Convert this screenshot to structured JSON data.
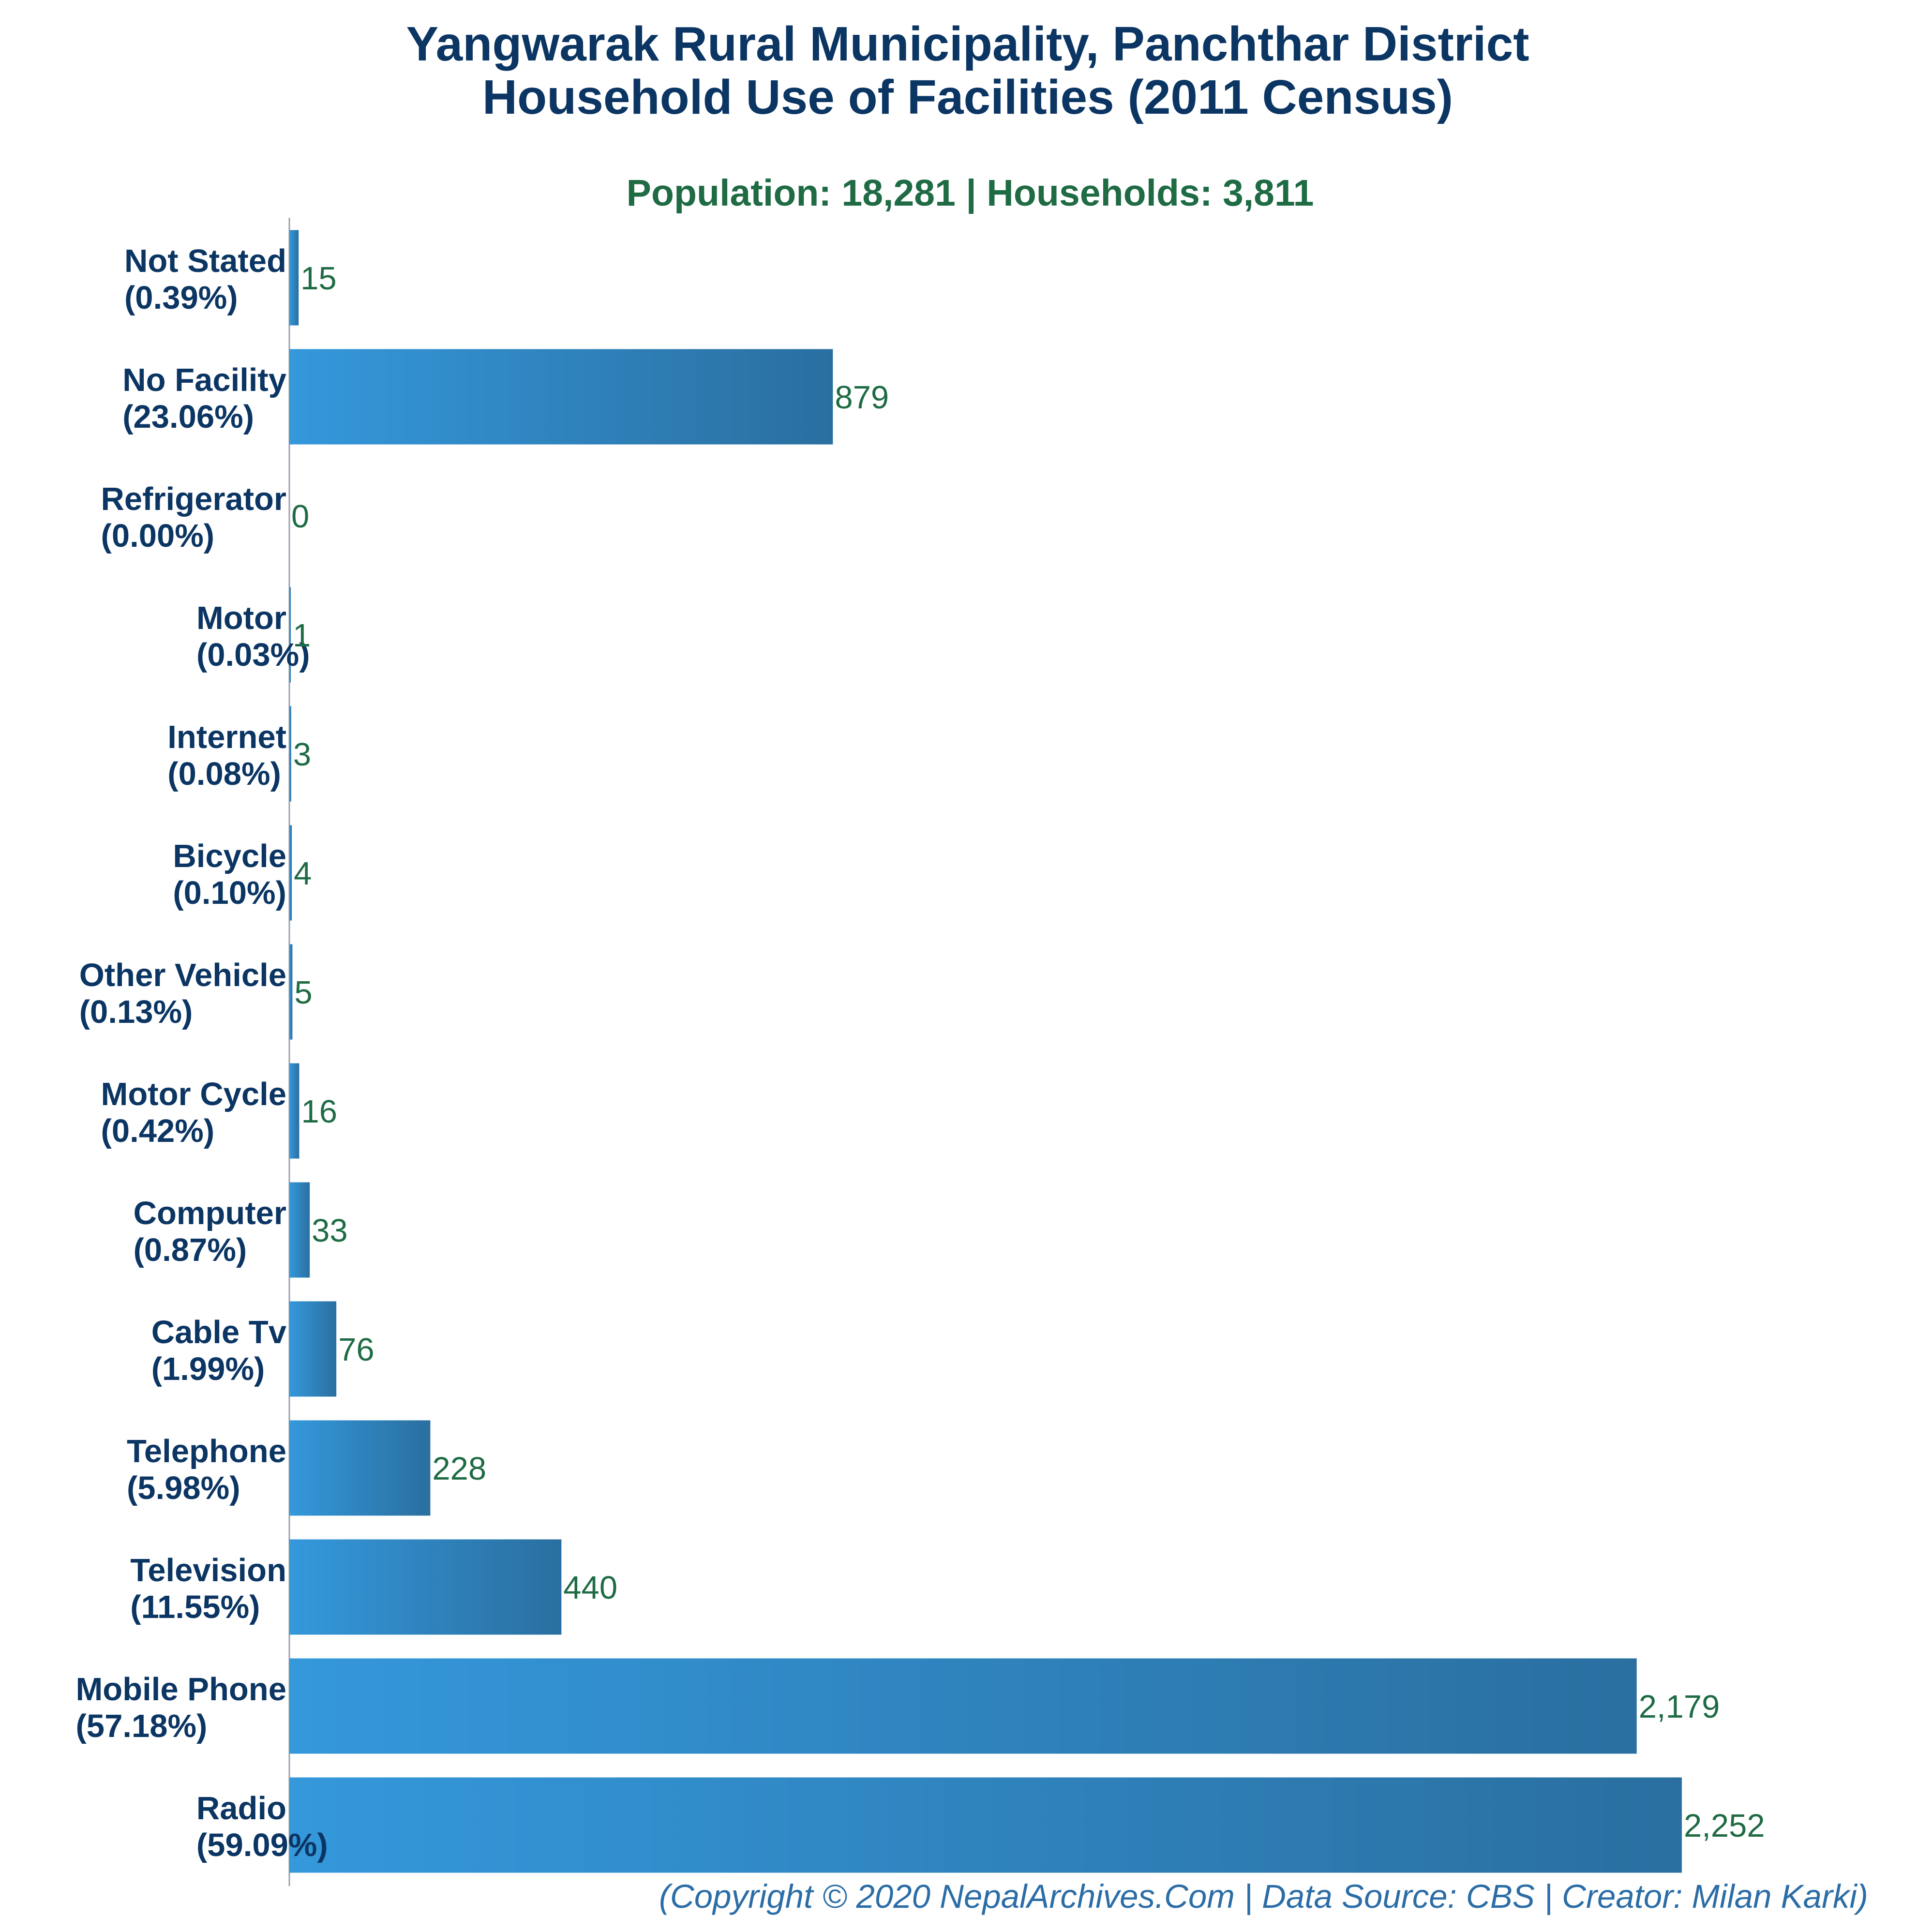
{
  "title_lines": [
    "Yangwarak Rural Municipality, Panchthar District",
    "Household Use of Facilities (2011 Census)"
  ],
  "subtitle": "Population: 18,281 | Households: 3,811",
  "footer": "(Copyright © 2020 NepalArchives.Com | Data Source: CBS | Creator: Milan Karki)",
  "colors": {
    "bar_start": "#3498db",
    "bar_end": "#2a6fa0",
    "title": "#0b3563",
    "subtitle": "#1e6b44",
    "value_label": "#1e6b44",
    "footer": "#2b6da6"
  },
  "chart_data": {
    "type": "bar",
    "orientation": "horizontal",
    "title": "Yangwarak Rural Municipality, Panchthar District Household Use of Facilities (2011 Census)",
    "categories": [
      "Not Stated",
      "No Facility",
      "Refrigerator",
      "Motor",
      "Internet",
      "Bicycle",
      "Other Vehicle",
      "Motor Cycle",
      "Computer",
      "Cable Tv",
      "Telephone",
      "Television",
      "Mobile Phone",
      "Radio"
    ],
    "percent_labels": [
      "(0.39%)",
      "(23.06%)",
      "(0.00%)",
      "(0.03%)",
      "(0.08%)",
      "(0.10%)",
      "(0.13%)",
      "(0.42%)",
      "(0.87%)",
      "(1.99%)",
      "(5.98%)",
      "(11.55%)",
      "(57.18%)",
      "(59.09%)"
    ],
    "values": [
      15,
      879,
      0,
      1,
      3,
      4,
      5,
      16,
      33,
      76,
      228,
      440,
      2179,
      2252
    ],
    "value_labels": [
      "15",
      "879",
      "0",
      "1",
      "3",
      "4",
      "5",
      "16",
      "33",
      "76",
      "228",
      "440",
      "2,179",
      "2,252"
    ],
    "xlim": [
      0,
      2252
    ],
    "xlabel": "",
    "ylabel": "",
    "grid": false,
    "legend": "none"
  }
}
